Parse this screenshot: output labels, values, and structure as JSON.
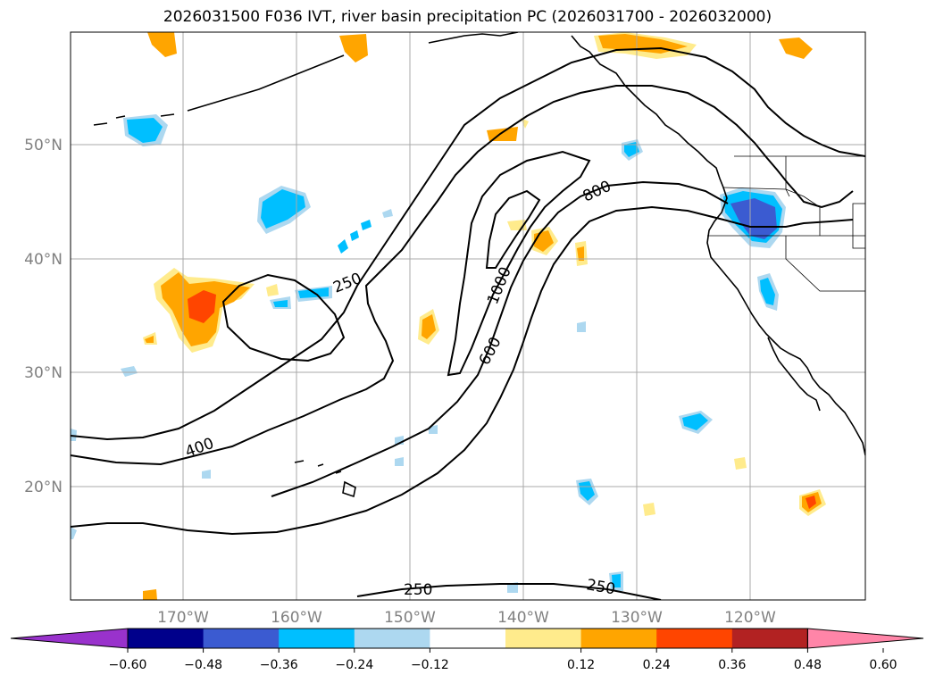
{
  "title": "2026031500 F036 IVT, river basin precipitation PC (2026031700 - 2026032000)",
  "map": {
    "lat_labels": [
      "50°N",
      "40°N",
      "30°N",
      "20°N"
    ],
    "lon_labels": [
      "170°W",
      "160°W",
      "150°W",
      "140°W",
      "130°W",
      "120°W"
    ],
    "gridlines": true
  },
  "ivt_contours": {
    "levels": [
      "250",
      "400",
      "600",
      "800",
      "1000"
    ],
    "labels": [
      "250",
      "400",
      "600",
      "800",
      "1000",
      "250",
      "250"
    ]
  },
  "colorbar": {
    "ticks": [
      "−0.60",
      "−0.48",
      "−0.36",
      "−0.24",
      "−0.12",
      "0.12",
      "0.24",
      "0.36",
      "0.48",
      "0.60"
    ],
    "colors": [
      "#9932cc",
      "#00008b",
      "#3b5bd1",
      "#00bfff",
      "#add8f0",
      "#ffffff",
      "#ffeb8c",
      "#ffa500",
      "#ff4500",
      "#b22222",
      "#ff85a8"
    ],
    "extend": "both"
  }
}
